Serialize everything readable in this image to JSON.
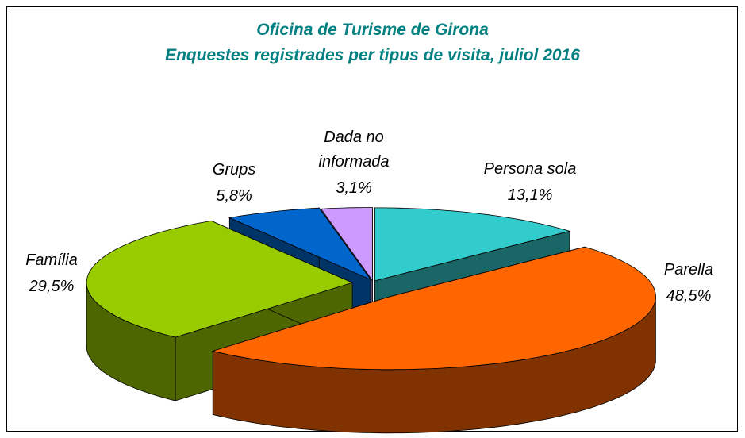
{
  "chart_data": {
    "type": "pie",
    "title": "Oficina de Turisme de Girona",
    "subtitle": "Enquestes registrades per tipus de visita, juliol 2016",
    "categories": [
      "Persona sola",
      "Parella",
      "Família",
      "Grups",
      "Dada no informada"
    ],
    "values": [
      13.1,
      48.5,
      29.5,
      5.8,
      3.1
    ],
    "value_labels": [
      "13,1%",
      "48,5%",
      "29,5%",
      "5,8%",
      "3,1%"
    ],
    "colors": [
      "#33cccc",
      "#ff6600",
      "#99cc00",
      "#0066cc",
      "#cc99ff"
    ]
  }
}
